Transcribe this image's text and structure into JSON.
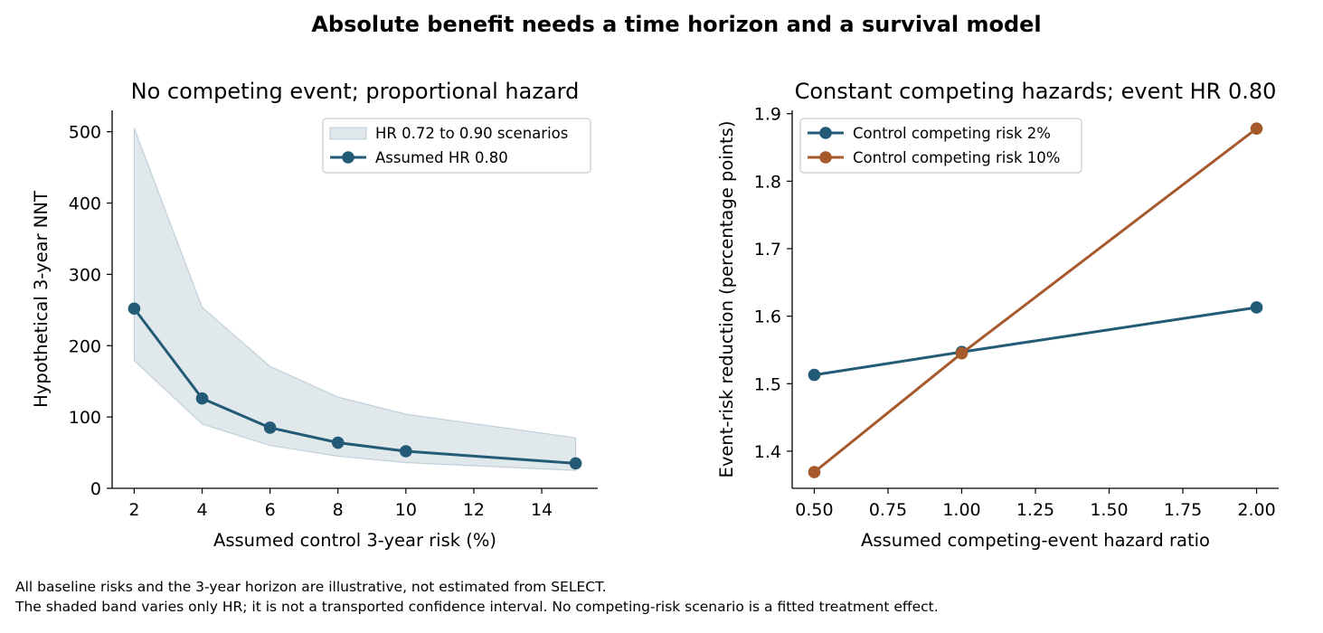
{
  "figure": {
    "suptitle": "Absolute benefit needs a time horizon and a survival model",
    "notes": [
      "All baseline risks and the 3-year horizon are illustrative, not estimated from SELECT.",
      "The shaded band varies only HR; it is not a transported confidence interval. No competing-risk scenario is a fitted treatment effect."
    ]
  },
  "chart_data": [
    {
      "type": "line",
      "title": "No competing event; proportional hazard",
      "xlabel": "Assumed control 3-year risk (%)",
      "ylabel": "Hypothetical 3-year NNT",
      "xlim": [
        1.35,
        15.65
      ],
      "ylim": [
        0,
        530
      ],
      "xticks": [
        2,
        4,
        6,
        8,
        10,
        12,
        14
      ],
      "yticks": [
        0,
        100,
        200,
        300,
        400,
        500
      ],
      "grid": false,
      "legend_position": "top-right",
      "x": [
        2,
        4,
        6,
        8,
        10,
        15
      ],
      "series": [
        {
          "name": "Assumed HR 0.80",
          "values": [
            252,
            126,
            85,
            64,
            52,
            35
          ],
          "color": "#235b77",
          "marker": "circle"
        }
      ],
      "band": {
        "name": "HR 0.72 to 0.90 scenarios",
        "lower": [
          179,
          90,
          60,
          45,
          36,
          25
        ],
        "upper": [
          505,
          254,
          171,
          128,
          104,
          71
        ],
        "color": "#235b77"
      }
    },
    {
      "type": "line",
      "title": "Constant competing hazards; event HR 0.80",
      "xlabel": "Assumed competing-event hazard ratio",
      "ylabel": "Event-risk reduction (percentage points)",
      "xlim": [
        0.425,
        2.075
      ],
      "ylim": [
        1.345,
        1.905
      ],
      "xticks": [
        0.5,
        0.75,
        1.0,
        1.25,
        1.5,
        1.75,
        2.0
      ],
      "xtick_labels": [
        "0.50",
        "0.75",
        "1.00",
        "1.25",
        "1.50",
        "1.75",
        "2.00"
      ],
      "yticks": [
        1.4,
        1.5,
        1.6,
        1.7,
        1.8,
        1.9
      ],
      "ytick_labels": [
        "1.4",
        "1.5",
        "1.6",
        "1.7",
        "1.8",
        "1.9"
      ],
      "grid": false,
      "legend_position": "top-left",
      "x": [
        0.5,
        1.0,
        2.0
      ],
      "series": [
        {
          "name": "Control competing risk 2%",
          "values": [
            1.513,
            1.547,
            1.613
          ],
          "color": "#235b77",
          "marker": "circle"
        },
        {
          "name": "Control competing risk 10%",
          "values": [
            1.369,
            1.545,
            1.878
          ],
          "color": "#a65a2c",
          "marker": "circle"
        }
      ]
    }
  ]
}
